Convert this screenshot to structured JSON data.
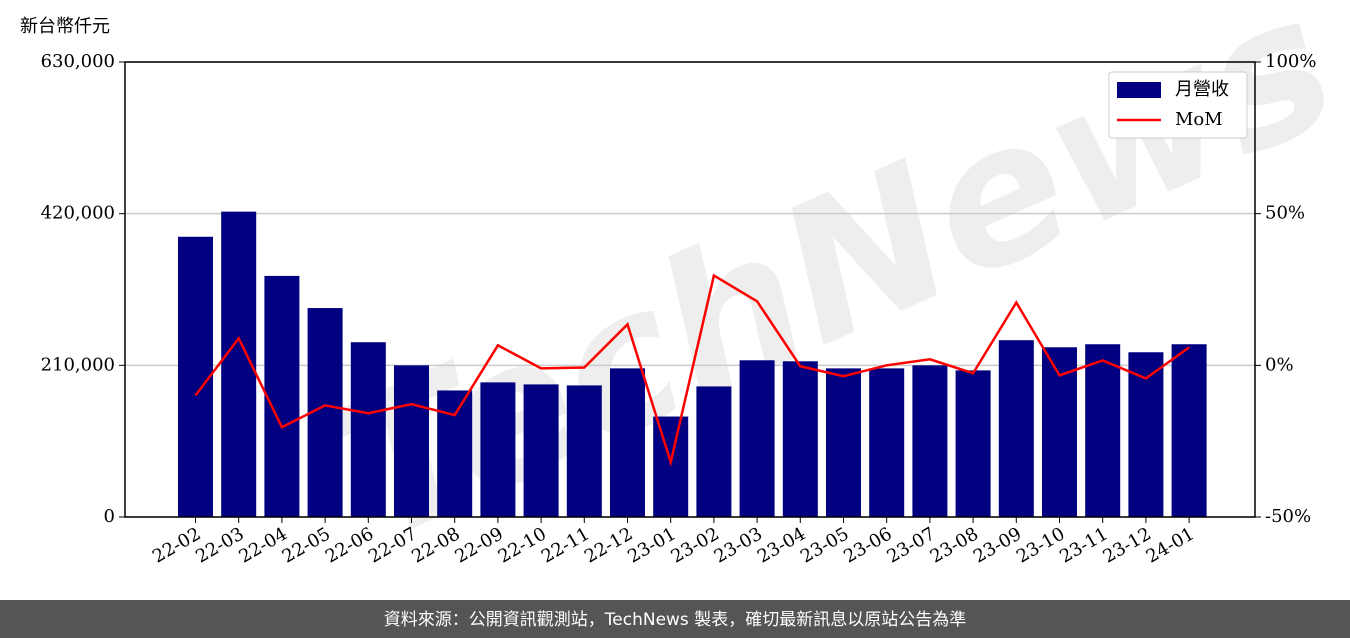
{
  "chart_data": {
    "type": "bar",
    "y_label": "新台幣仟元",
    "watermark": "TechNews",
    "footer": "資料來源：公開資訊觀測站，TechNews 製表，確切最新訊息以原站公告為準",
    "categories": [
      "22-02",
      "22-03",
      "22-04",
      "22-05",
      "22-06",
      "22-07",
      "22-08",
      "22-09",
      "22-10",
      "22-11",
      "22-12",
      "23-01",
      "23-02",
      "23-03",
      "23-04",
      "23-05",
      "23-06",
      "23-07",
      "23-08",
      "23-09",
      "23-10",
      "23-11",
      "23-12",
      "24-01"
    ],
    "series": [
      {
        "name": "月營收",
        "type": "bar",
        "color": "#000080",
        "values": [
          388000,
          422800,
          333800,
          289300,
          242000,
          210000,
          175200,
          186400,
          183600,
          182200,
          205800,
          139100,
          180800,
          217000,
          215600,
          205800,
          205800,
          210000,
          203000,
          244800,
          235000,
          239200,
          228100,
          239200
        ]
      },
      {
        "name": "MoM",
        "type": "line",
        "axis": "y2",
        "color": "#ff0000",
        "values": [
          -9.9,
          8.9,
          -20.4,
          -13.2,
          -15.8,
          -12.8,
          -16.4,
          6.6,
          -1.0,
          -0.7,
          13.5,
          -31.9,
          29.6,
          21.1,
          -0.3,
          -3.6,
          0,
          2.0,
          -2.6,
          20.7,
          -3.3,
          1.6,
          -4.3,
          5.9
        ]
      }
    ],
    "ylim": [
      0,
      630000
    ],
    "yticks": [
      {
        "value": 0,
        "label": "0"
      },
      {
        "value": 210000,
        "label": "210,000"
      },
      {
        "value": 420000,
        "label": "420,000"
      },
      {
        "value": 630000,
        "label": "630,000"
      }
    ],
    "y2lim": [
      -50,
      100
    ],
    "y2ticks": [
      {
        "value": -50,
        "label": "-50%"
      },
      {
        "value": 0,
        "label": "0%"
      },
      {
        "value": 50,
        "label": "50%"
      },
      {
        "value": 100,
        "label": "100%"
      }
    ],
    "grid": true,
    "legend": "upper right"
  }
}
